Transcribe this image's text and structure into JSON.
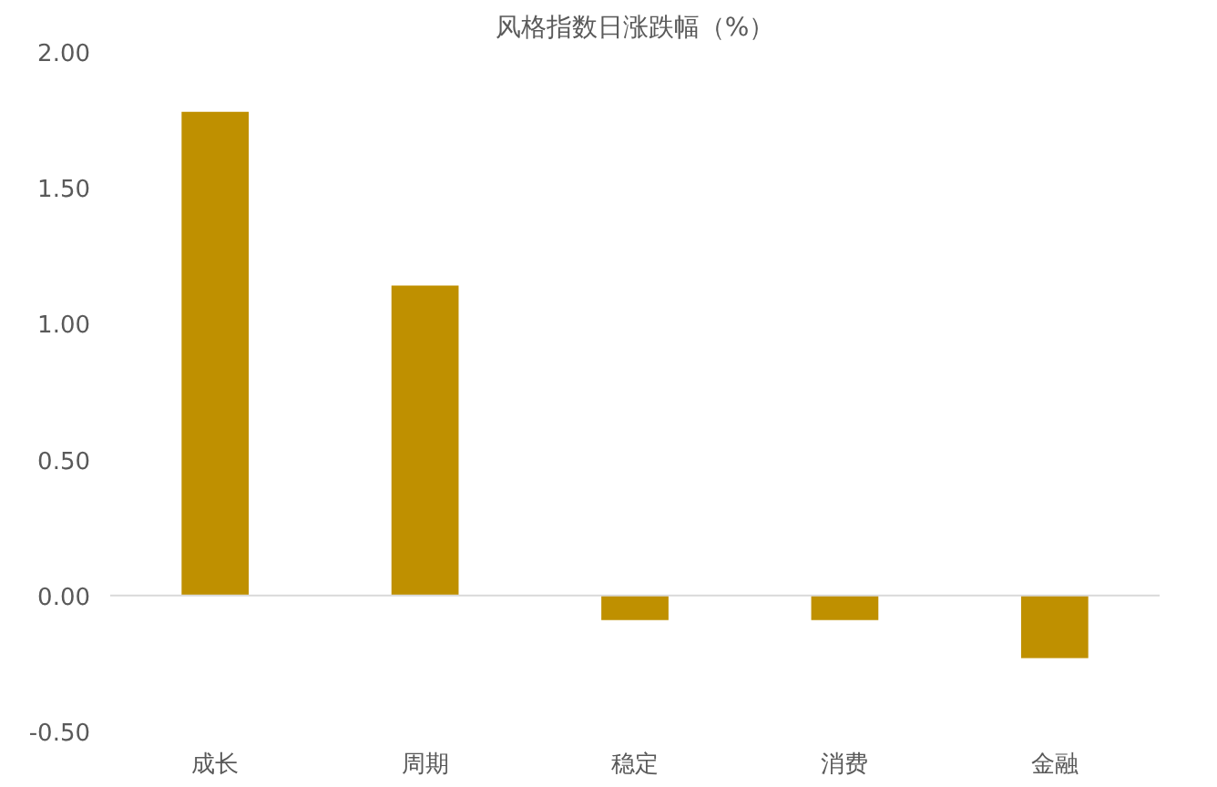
{
  "chart_data": {
    "type": "bar",
    "title": "风格指数日涨跌幅（%）",
    "categories": [
      "成长",
      "周期",
      "稳定",
      "消费",
      "金融"
    ],
    "values": [
      1.78,
      1.14,
      -0.09,
      -0.09,
      -0.23
    ],
    "color": "#bf9000",
    "ylim": [
      -0.5,
      2.0
    ],
    "yticks": [
      {
        "value": -0.5,
        "label": "-0.50"
      },
      {
        "value": 0,
        "label": "0.00"
      },
      {
        "value": 0.5,
        "label": "0.50"
      },
      {
        "value": 1.0,
        "label": "1.00"
      },
      {
        "value": 1.5,
        "label": "1.50"
      },
      {
        "value": 2.0,
        "label": "2.00"
      }
    ],
    "ref_lines": [
      {
        "axis": "y",
        "value": 0,
        "color": "#d9d9d9"
      }
    ],
    "grid": false
  }
}
